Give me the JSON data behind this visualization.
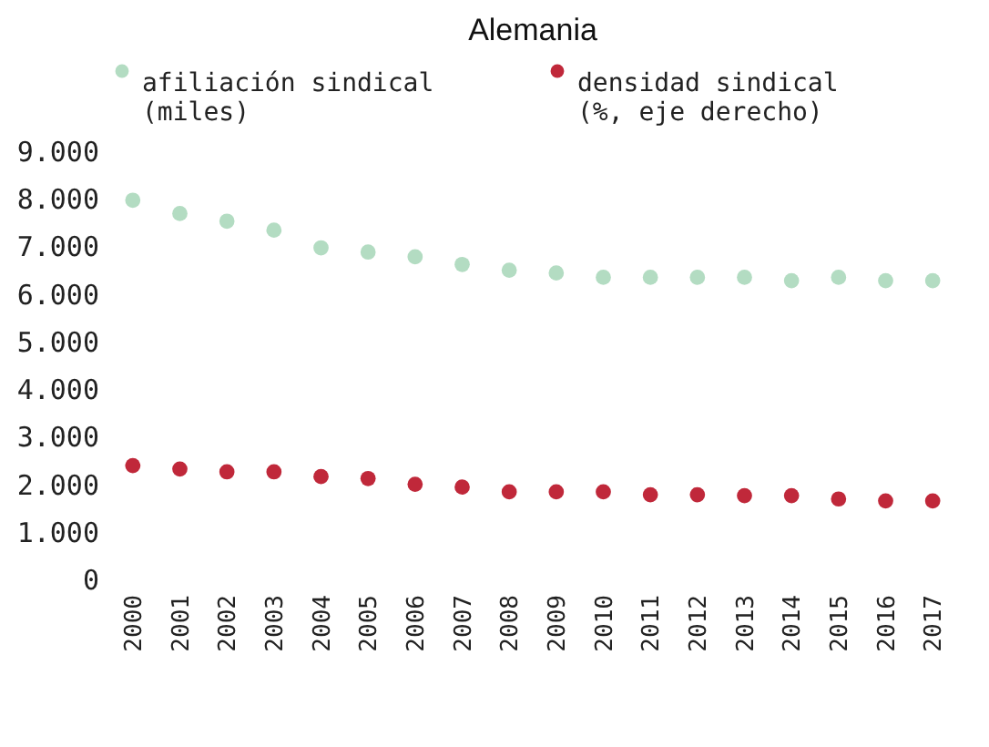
{
  "chart_data": {
    "type": "scatter",
    "title": "Alemania",
    "categories": [
      "2000",
      "2001",
      "2002",
      "2003",
      "2004",
      "2005",
      "2006",
      "2007",
      "2008",
      "2009",
      "2010",
      "2011",
      "2012",
      "2013",
      "2014",
      "2015",
      "2016",
      "2017"
    ],
    "series": [
      {
        "name": "afiliación sindical (miles)",
        "color": "#b3dcc2",
        "values": [
          7970,
          7690,
          7530,
          7340,
          6970,
          6880,
          6780,
          6620,
          6500,
          6440,
          6350,
          6350,
          6350,
          6350,
          6280,
          6350,
          6280,
          6280
        ]
      },
      {
        "name": "densidad sindical (%, eje derecho)",
        "color": "#c0283a",
        "values": [
          2390,
          2320,
          2260,
          2260,
          2160,
          2120,
          2000,
          1940,
          1840,
          1840,
          1840,
          1780,
          1780,
          1760,
          1760,
          1690,
          1650,
          1650
        ]
      }
    ],
    "ylim": [
      0,
      9000
    ],
    "yticks": [
      {
        "value": 0,
        "label": "0"
      },
      {
        "value": 1000,
        "label": "1.000"
      },
      {
        "value": 2000,
        "label": "2.000"
      },
      {
        "value": 3000,
        "label": "3.000"
      },
      {
        "value": 4000,
        "label": "4.000"
      },
      {
        "value": 5000,
        "label": "5.000"
      },
      {
        "value": 6000,
        "label": "6.000"
      },
      {
        "value": 7000,
        "label": "7.000"
      },
      {
        "value": 8000,
        "label": "8.000"
      },
      {
        "value": 9000,
        "label": "9.000"
      }
    ],
    "grid": false,
    "legend": "top",
    "marker": "circle"
  }
}
